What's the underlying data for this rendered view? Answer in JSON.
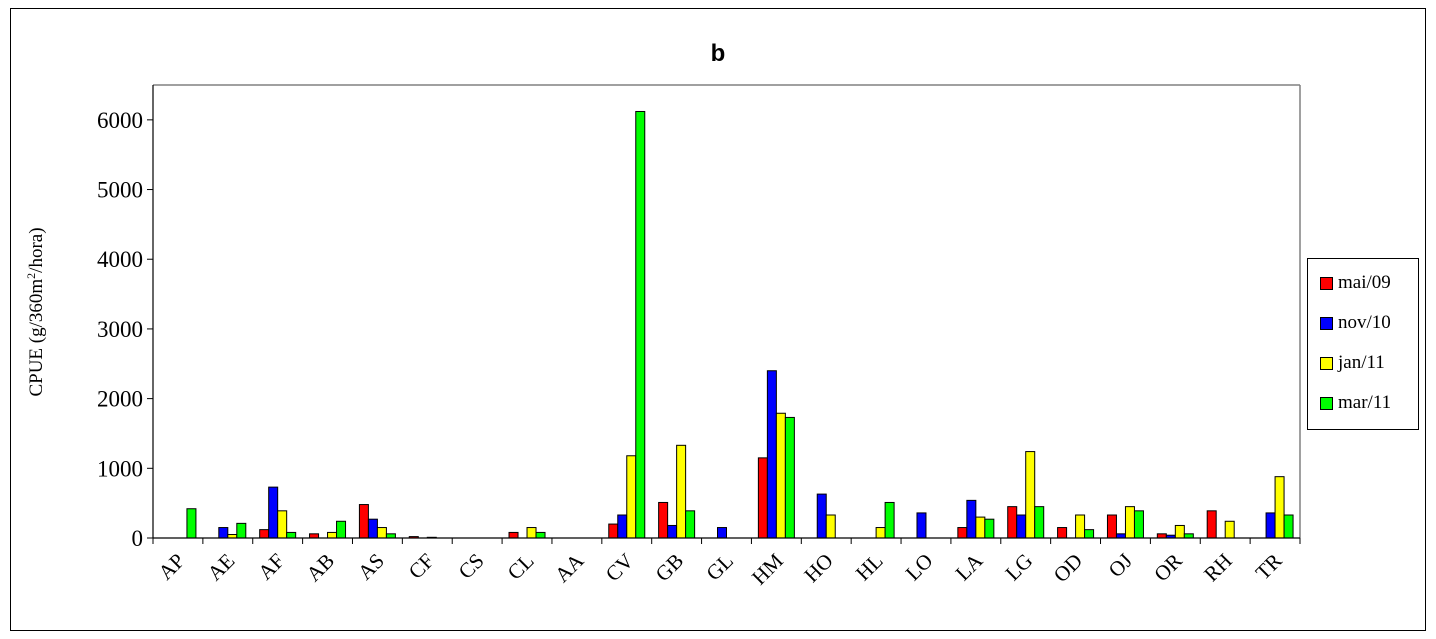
{
  "chart_data": {
    "type": "bar",
    "title": "b",
    "ylabel": {
      "prefix": "CPUE (g/360m",
      "sup": "2",
      "suffix": "/hora)"
    },
    "ylim": [
      0,
      6500
    ],
    "yticks": [
      "0",
      "1000",
      "2000",
      "3000",
      "4000",
      "5000",
      "6000"
    ],
    "categories": [
      "AP",
      "AE",
      "AF",
      "AB",
      "AS",
      "CF",
      "CS",
      "CL",
      "AA",
      "CV",
      "GB",
      "GL",
      "HM",
      "HO",
      "HL",
      "LO",
      "LA",
      "LG",
      "OD",
      "OJ",
      "OR",
      "RH",
      "TR"
    ],
    "series": [
      {
        "name": "mai/09",
        "color": "#ff0000",
        "values": [
          0,
          0,
          120,
          60,
          480,
          20,
          0,
          80,
          0,
          200,
          510,
          0,
          1150,
          0,
          0,
          0,
          150,
          450,
          150,
          330,
          60,
          390,
          0
        ]
      },
      {
        "name": "nov/10",
        "color": "#0000ff",
        "values": [
          0,
          150,
          730,
          0,
          270,
          0,
          0,
          0,
          0,
          330,
          180,
          150,
          2400,
          630,
          0,
          360,
          540,
          330,
          0,
          60,
          40,
          0,
          360
        ]
      },
      {
        "name": "jan/11",
        "color": "#ffff00",
        "values": [
          0,
          50,
          390,
          80,
          150,
          10,
          0,
          150,
          0,
          1180,
          1330,
          0,
          1790,
          330,
          150,
          0,
          300,
          1240,
          330,
          450,
          180,
          240,
          880
        ]
      },
      {
        "name": "mar/11",
        "color": "#00ff00",
        "values": [
          420,
          210,
          80,
          240,
          60,
          0,
          0,
          80,
          0,
          6120,
          390,
          0,
          1730,
          0,
          510,
          0,
          270,
          450,
          120,
          390,
          60,
          0,
          330
        ]
      }
    ],
    "legend_position": "right",
    "grid": false
  }
}
